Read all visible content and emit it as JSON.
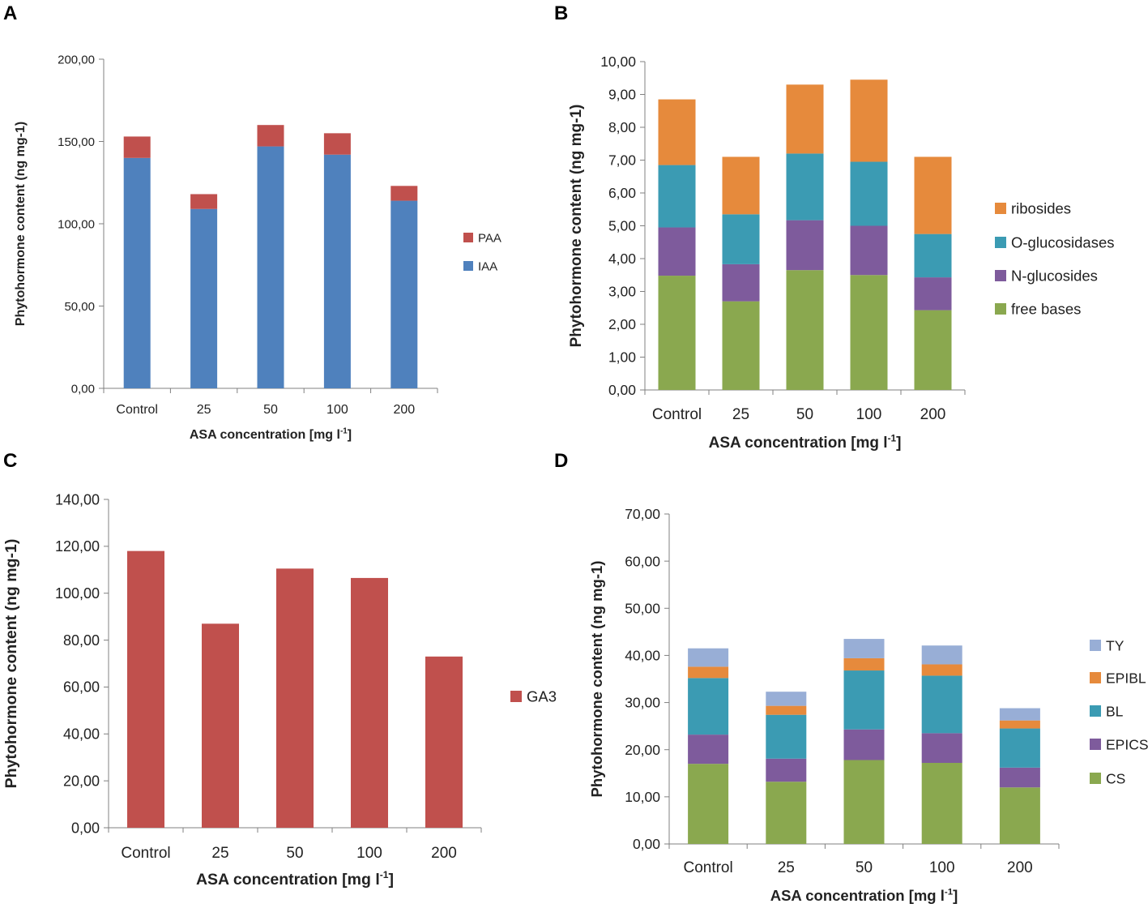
{
  "colors": {
    "blue": "#4f81bd",
    "red": "#c0504d",
    "green": "#8aa84f",
    "purple": "#7e5b9c",
    "teal": "#3b9bb3",
    "orange": "#e68a3c",
    "lightblue": "#98aed6",
    "axis": "#808080"
  },
  "chart_data": [
    {
      "panel": "A",
      "type": "bar",
      "stacked": true,
      "categories": [
        "Control",
        "25",
        "50",
        "100",
        "200"
      ],
      "series": [
        {
          "name": "IAA",
          "values": [
            140,
            109,
            147,
            142,
            114
          ]
        },
        {
          "name": "PAA",
          "values": [
            13,
            9,
            13,
            13,
            9
          ]
        }
      ],
      "yticks": [
        "0,00",
        "50,00",
        "100,00",
        "150,00",
        "200,00"
      ],
      "ylim": [
        0,
        200
      ],
      "xlabel": "ASA concentration [mg l",
      "xlabel_sup": "-1",
      "xlabel_end": "]",
      "ylabel": "Phytohormone content (ng mg-1)",
      "legend": [
        "PAA",
        "IAA"
      ],
      "legend_position": "right"
    },
    {
      "panel": "B",
      "type": "bar",
      "stacked": true,
      "categories": [
        "Control",
        "25",
        "50",
        "100",
        "200"
      ],
      "series": [
        {
          "name": "free bases",
          "values": [
            3.48,
            2.7,
            3.65,
            3.5,
            2.43
          ]
        },
        {
          "name": "N-glucosides",
          "values": [
            1.47,
            1.13,
            1.52,
            1.5,
            1.0
          ]
        },
        {
          "name": "O-glucosidases",
          "values": [
            1.9,
            1.52,
            2.03,
            1.95,
            1.32
          ]
        },
        {
          "name": "ribosides",
          "values": [
            2.0,
            1.75,
            2.1,
            2.5,
            2.35
          ]
        }
      ],
      "yticks": [
        "0,00",
        "1,00",
        "2,00",
        "3,00",
        "4,00",
        "5,00",
        "6,00",
        "7,00",
        "8,00",
        "9,00",
        "10,00"
      ],
      "ylim": [
        0,
        10
      ],
      "xlabel": "ASA concentration [mg l",
      "xlabel_sup": "-1",
      "xlabel_end": "]",
      "ylabel": "Phytohormone content (ng mg-1)",
      "legend": [
        "ribosides",
        "O-glucosidases",
        "N-glucosides",
        "free bases"
      ],
      "legend_position": "right"
    },
    {
      "panel": "C",
      "type": "bar",
      "stacked": false,
      "categories": [
        "Control",
        "25",
        "50",
        "100",
        "200"
      ],
      "series": [
        {
          "name": "GA3",
          "values": [
            118,
            87,
            110.5,
            106.5,
            73
          ]
        }
      ],
      "yticks": [
        "0,00",
        "20,00",
        "40,00",
        "60,00",
        "80,00",
        "100,00",
        "120,00",
        "140,00"
      ],
      "ylim": [
        0,
        140
      ],
      "xlabel": "ASA concentration [mg l",
      "xlabel_sup": "-1",
      "xlabel_end": "]",
      "ylabel": "Phytohormone content (ng mg-1)",
      "legend": [
        "GA3"
      ],
      "legend_position": "right"
    },
    {
      "panel": "D",
      "type": "bar",
      "stacked": true,
      "categories": [
        "Control",
        "25",
        "50",
        "100",
        "200"
      ],
      "series": [
        {
          "name": "CS",
          "values": [
            17,
            13.2,
            17.8,
            17.2,
            12
          ]
        },
        {
          "name": "EPICS",
          "values": [
            6.2,
            4.9,
            6.5,
            6.3,
            4.2
          ]
        },
        {
          "name": "BL",
          "values": [
            12,
            9.3,
            12.5,
            12.2,
            8.3
          ]
        },
        {
          "name": "EPIBL",
          "values": [
            2.4,
            1.9,
            2.6,
            2.4,
            1.7
          ]
        },
        {
          "name": "TY",
          "values": [
            3.9,
            3.0,
            4.1,
            4.0,
            2.6
          ]
        }
      ],
      "yticks": [
        "0,00",
        "10,00",
        "20,00",
        "30,00",
        "40,00",
        "50,00",
        "60,00",
        "70,00"
      ],
      "ylim": [
        0,
        70
      ],
      "xlabel": "ASA concentration [mg l",
      "xlabel_sup": "-1",
      "xlabel_end": "]",
      "ylabel": "Phytohormone content (ng mg-1)",
      "legend": [
        "TY",
        "EPIBL",
        "BL",
        "EPICS",
        "CS"
      ],
      "legend_position": "right"
    }
  ]
}
